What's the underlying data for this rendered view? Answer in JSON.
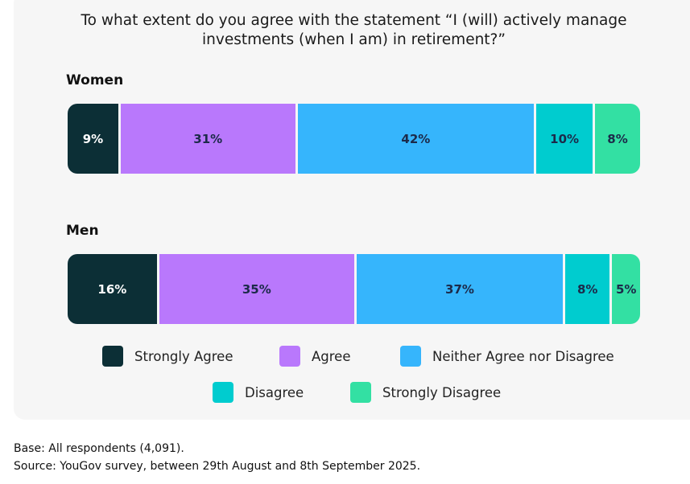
{
  "chart_data": {
    "type": "bar",
    "stacked": true,
    "orientation": "horizontal",
    "title": "To what extent do you agree with the statement “I (will) actively manage investments (when I am) in retirement?”",
    "categories": [
      "Women",
      "Men"
    ],
    "series": [
      {
        "name": "Strongly Agree",
        "color": "#0c2f36",
        "values": [
          9,
          16
        ],
        "labels": [
          "9%",
          "16%"
        ]
      },
      {
        "name": "Agree",
        "color": "#b978fc",
        "values": [
          31,
          35
        ],
        "labels": [
          "31%",
          "35%"
        ]
      },
      {
        "name": "Neither Agree nor Disagree",
        "color": "#36b5fc",
        "values": [
          42,
          37
        ],
        "labels": [
          "42%",
          "37%"
        ]
      },
      {
        "name": "Disagree",
        "color": "#00cccf",
        "values": [
          10,
          8
        ],
        "labels": [
          "10%",
          "8%"
        ]
      },
      {
        "name": "Strongly Disagree",
        "color": "#33e0a3",
        "values": [
          8,
          5
        ],
        "labels": [
          "8%",
          "5%"
        ]
      }
    ],
    "legend": "bottom"
  },
  "footnotes": {
    "base": "Base: All respondents (4,091).",
    "source": "Source: YouGov survey, between 29th August and 8th September 2025."
  }
}
